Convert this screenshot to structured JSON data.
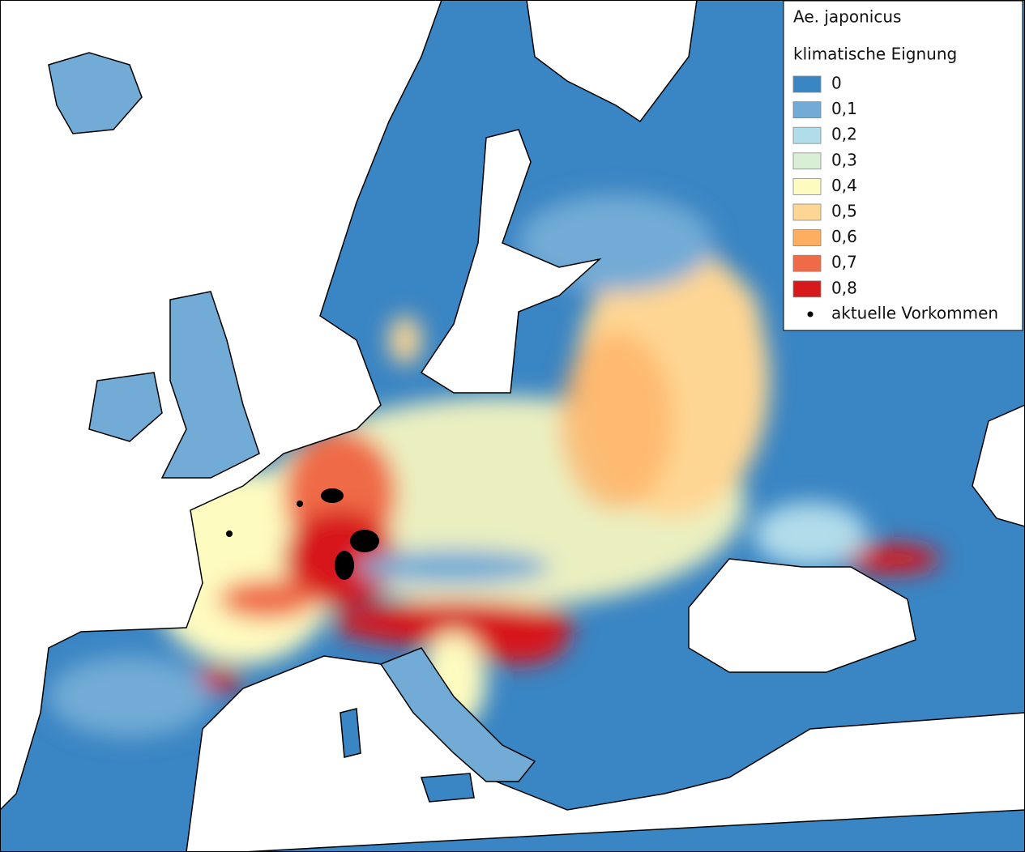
{
  "legend": {
    "title": "Ae. japonicus",
    "subtitle": "klimatische Eignung",
    "items": [
      {
        "label": "0",
        "color": "#3a85c3"
      },
      {
        "label": "0,1",
        "color": "#72abd5"
      },
      {
        "label": "0,2",
        "color": "#b1dcea"
      },
      {
        "label": "0,3",
        "color": "#d8efd6"
      },
      {
        "label": "0,4",
        "color": "#fefbc0"
      },
      {
        "label": "0,5",
        "color": "#fed693"
      },
      {
        "label": "0,6",
        "color": "#fdae61"
      },
      {
        "label": "0,7",
        "color": "#ef6a46"
      },
      {
        "label": "0,8",
        "color": "#d7191c"
      }
    ],
    "points_label": "aktuelle Vorkommen"
  }
}
